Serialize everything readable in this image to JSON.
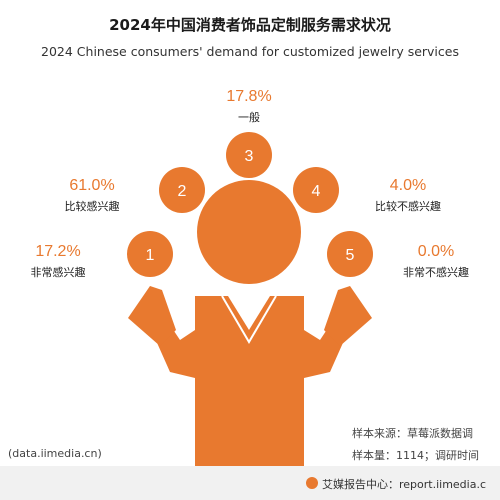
{
  "chart_data": {
    "type": "pie",
    "title": "2024年中国消费者饰品定制服务需求状况",
    "subtitle": "2024 Chinese consumers' demand for customized jewelry services",
    "categories": [
      "非常感兴趣",
      "比较感兴趣",
      "一般",
      "比较不感兴趣",
      "非常不感兴趣"
    ],
    "values": [
      17.2,
      61.0,
      17.8,
      4.0,
      0.0
    ],
    "value_labels": [
      "17.2%",
      "61.0%",
      "17.8%",
      "4.0%",
      "0.0%"
    ],
    "markers": [
      "1",
      "2",
      "3",
      "4",
      "5"
    ],
    "unit": "%"
  },
  "colors": {
    "accent": "#e8792f",
    "text": "#222222"
  },
  "source": {
    "sample_source": "样本来源：草莓派数据调",
    "sample_size": "样本量：1114；调研时间",
    "url": "(data.iimedia.cn)"
  },
  "footer": {
    "text": "艾媒报告中心：report.iimedia.c"
  }
}
